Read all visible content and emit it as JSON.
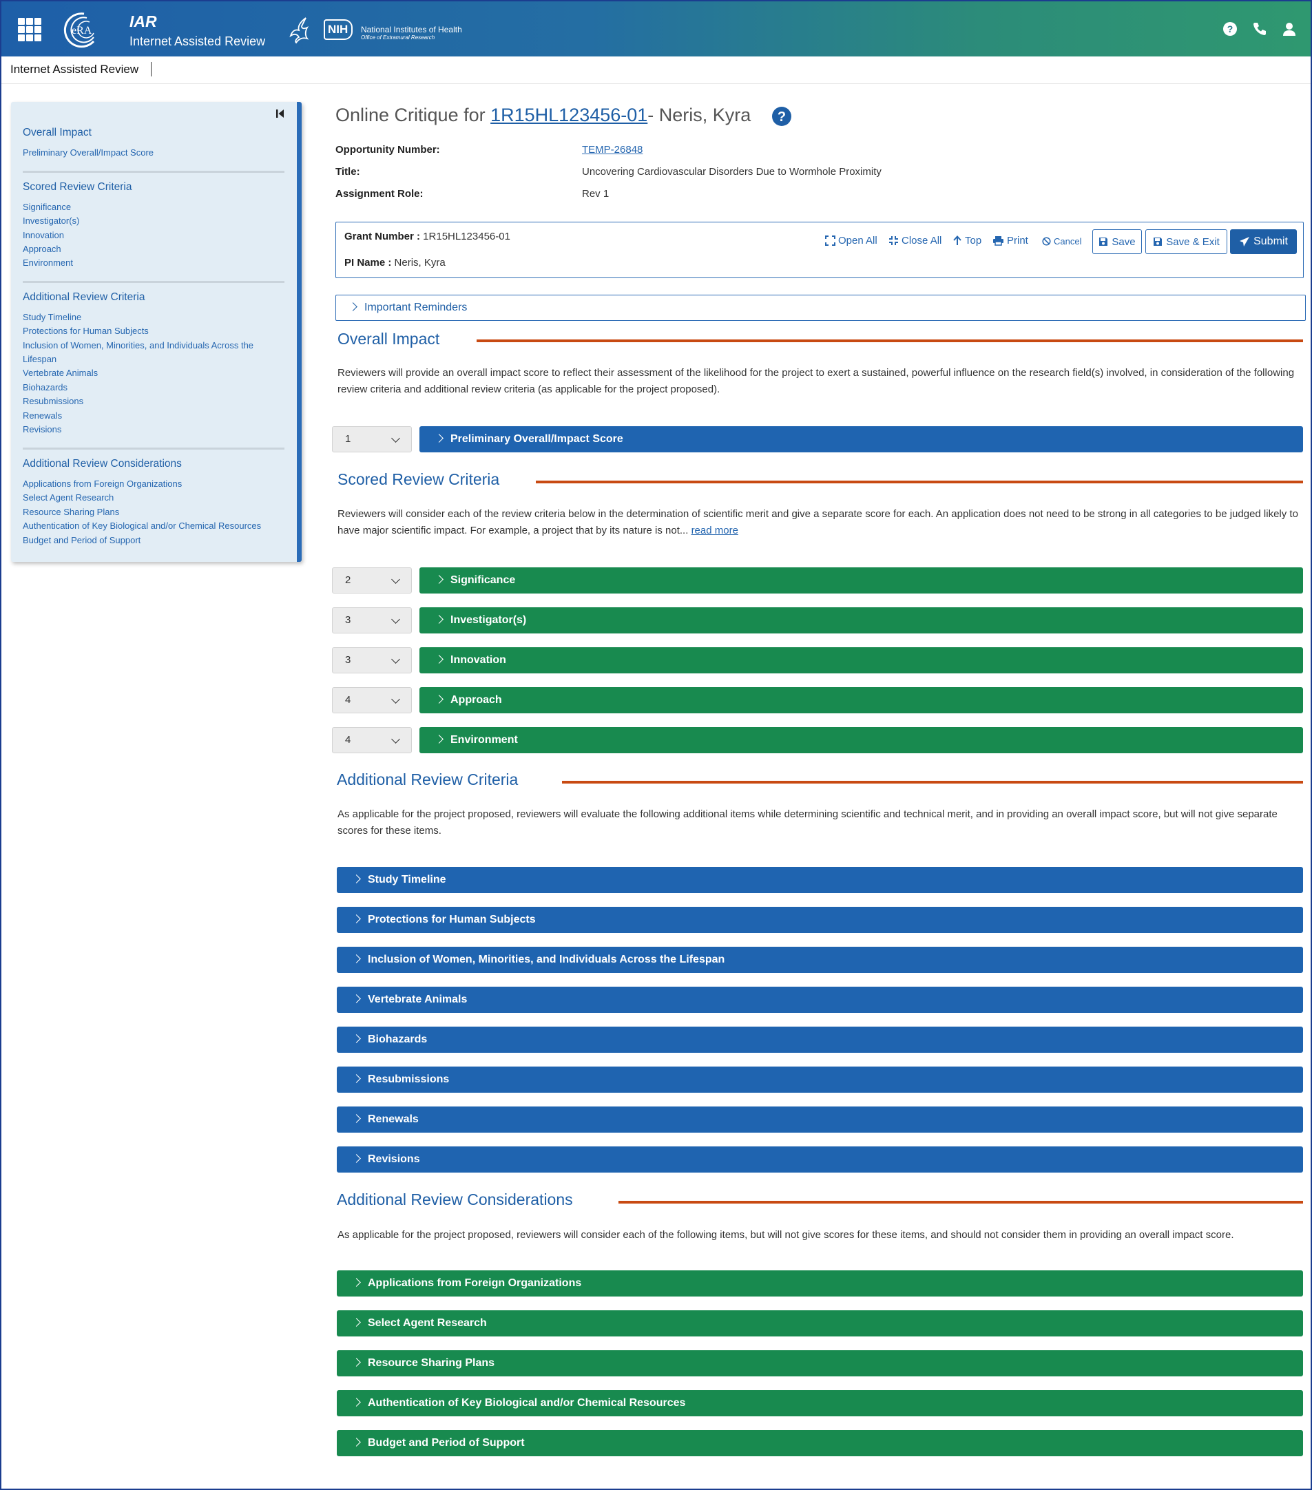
{
  "header": {
    "app_name": "IAR",
    "app_subtitle": "Internet Assisted Review",
    "nih_box": "NIH",
    "nih_line1": "National Institutes of Health",
    "nih_line2": "Office of Extramural Research",
    "era_text": "eRA",
    "icons": [
      "apps-grid-icon",
      "help-icon",
      "phone-icon",
      "user-icon"
    ]
  },
  "subbar": {
    "title": "Internet Assisted Review"
  },
  "sidebar": {
    "sections": [
      {
        "title": "Overall Impact",
        "links": [
          "Preliminary Overall/Impact Score"
        ]
      },
      {
        "title": "Scored Review Criteria",
        "links": [
          "Significance",
          "Investigator(s)",
          "Innovation",
          "Approach",
          "Environment"
        ]
      },
      {
        "title": "Additional Review Criteria",
        "links": [
          "Study Timeline",
          "Protections for Human Subjects",
          "Inclusion of Women, Minorities, and Individuals Across the",
          "Lifespan",
          "Vertebrate Animals",
          "Biohazards",
          "Resubmissions",
          "Renewals",
          "Revisions"
        ]
      },
      {
        "title": "Additional Review Considerations",
        "links": [
          "Applications from Foreign Organizations",
          "Select Agent Research",
          "Resource Sharing Plans",
          "Authentication of Key Biological and/or Chemical Resources",
          "Budget and Period of Support"
        ]
      }
    ]
  },
  "critique": {
    "title_prefix": "Online Critique for ",
    "grant_link": "1R15HL123456-01",
    "title_suffix": "- Neris, Kyra",
    "opportunity_label": "Opportunity Number:",
    "opportunity_value": "TEMP-26848",
    "title_label": "Title:",
    "title_value": "Uncovering Cardiovascular Disorders Due to Wormhole Proximity",
    "role_label": "Assignment Role:",
    "role_value": "Rev 1"
  },
  "grant_box": {
    "grant_label": "Grant Number :",
    "grant_value": " 1R15HL123456-01",
    "pi_label": "PI Name :",
    "pi_value": " Neris, Kyra",
    "open_all": "Open All",
    "close_all": "Close All",
    "top": "Top",
    "print": "Print",
    "cancel": "Cancel",
    "save": "Save",
    "save_exit": "Save & Exit",
    "submit": "Submit"
  },
  "reminders": "Important Reminders",
  "overall": {
    "heading": "Overall Impact",
    "text": "Reviewers will provide an overall impact score to reflect their assessment of the likelihood for the project to exert a sustained, powerful influence on the research field(s) involved, in consideration of the following review criteria and additional review criteria (as applicable for the project proposed).",
    "score": "1",
    "bar": "Preliminary Overall/Impact Score"
  },
  "scored": {
    "heading": "Scored Review Criteria",
    "text": "Reviewers will consider each of the review criteria below in the determination of scientific merit and give a separate score for each. An application does not need to be strong in all categories to be judged likely to have major scientific impact. For example, a project that by its nature is not... ",
    "read_more": "read more",
    "items": [
      {
        "score": "2",
        "label": "Significance"
      },
      {
        "score": "3",
        "label": "Investigator(s)"
      },
      {
        "score": "3",
        "label": "Innovation"
      },
      {
        "score": "4",
        "label": "Approach"
      },
      {
        "score": "4",
        "label": "Environment"
      }
    ]
  },
  "additional_criteria": {
    "heading": "Additional Review Criteria",
    "text": "As applicable for the project proposed, reviewers will evaluate the following additional items while determining scientific and technical merit, and in providing an overall impact score, but will not give separate scores for these items.",
    "items": [
      "Study Timeline",
      "Protections for Human Subjects",
      "Inclusion of Women, Minorities, and Individuals Across the Lifespan",
      "Vertebrate Animals",
      "Biohazards",
      "Resubmissions",
      "Renewals",
      "Revisions"
    ]
  },
  "additional_considerations": {
    "heading": "Additional Review Considerations",
    "text": "As applicable for the project proposed, reviewers will consider each of the following items, but will not give scores for these items, and should not consider them in providing an overall impact score.",
    "items": [
      "Applications from Foreign Organizations",
      "Select Agent Research",
      "Resource Sharing Plans",
      "Authentication of Key Biological and/or Chemical Resources",
      "Budget and Period of Support"
    ]
  },
  "colors": {
    "header_start": "#1e5fa8",
    "header_end": "#2f9870",
    "link_blue": "#1f5fa6",
    "bar_blue": "#1f64b0",
    "bar_green": "#188a4f",
    "section_rule": "#c84a12",
    "sidebar_bg": "#e2edf5"
  }
}
